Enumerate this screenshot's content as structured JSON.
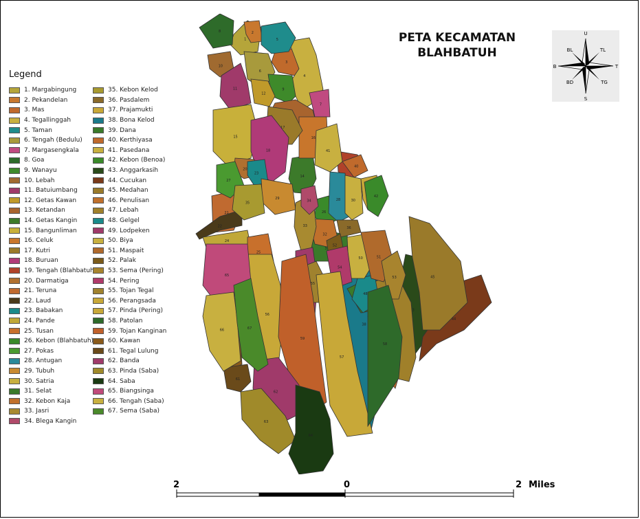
{
  "map": {
    "title_line1": "PETA KECAMATAN",
    "title_line2": "BLAHBATUH",
    "legend_title": "Legend",
    "legend": [
      {
        "label": "1. Margabingung",
        "color": "#b5a53a"
      },
      {
        "label": "2. Pekandelan",
        "color": "#c8782e"
      },
      {
        "label": "3. Mas",
        "color": "#c06a2c"
      },
      {
        "label": "4. Tegallinggah",
        "color": "#c8b040"
      },
      {
        "label": "5. Taman",
        "color": "#1f8c8c"
      },
      {
        "label": "6. Tengah (Bedulu)",
        "color": "#a89a3c"
      },
      {
        "label": "7. Margasengkala",
        "color": "#c04a80"
      },
      {
        "label": "8. Goa",
        "color": "#2e6b2a"
      },
      {
        "label": "9. Wanayu",
        "color": "#3e8a2a"
      },
      {
        "label": "10. Lebah",
        "color": "#a06a30"
      },
      {
        "label": "11. Batuiumbang",
        "color": "#a03a6a"
      },
      {
        "label": "12. Getas Kawan",
        "color": "#c09a2a"
      },
      {
        "label": "13. Ketandan",
        "color": "#a8642e"
      },
      {
        "label": "14. Getas Kangin",
        "color": "#3c7a2a"
      },
      {
        "label": "15. Bangunliman",
        "color": "#c8b03a"
      },
      {
        "label": "16. Celuk",
        "color": "#c8762c"
      },
      {
        "label": "17. Kutri",
        "color": "#9a7a2a"
      },
      {
        "label": "18. Buruan",
        "color": "#b03a78"
      },
      {
        "label": "19. Tengah (Blahbatuh)",
        "color": "#b0422a"
      },
      {
        "label": "20. Darmatiga",
        "color": "#b07030"
      },
      {
        "label": "21. Teruna",
        "color": "#c06a30"
      },
      {
        "label": "22. Laud",
        "color": "#4a3a1a"
      },
      {
        "label": "23. Babakan",
        "color": "#1a8a8a"
      },
      {
        "label": "24. Pande",
        "color": "#c0a838"
      },
      {
        "label": "25. Tusan",
        "color": "#c8702c"
      },
      {
        "label": "26. Kebon (Blahbatuh)",
        "color": "#3a8a2a"
      },
      {
        "label": "27. Pokas",
        "color": "#4a9a30"
      },
      {
        "label": "28. Antugan",
        "color": "#2a8a9a"
      },
      {
        "label": "29. Tubuh",
        "color": "#c88a30"
      },
      {
        "label": "30. Satria",
        "color": "#c8b040"
      },
      {
        "label": "31. Selat",
        "color": "#3a7a2a"
      },
      {
        "label": "32. Kebon Kaja",
        "color": "#c0702c"
      },
      {
        "label": "33. Jasri",
        "color": "#a88a30"
      },
      {
        "label": "34. Blega Kangin",
        "color": "#b04a6a"
      },
      {
        "label": "35. Kebon Kelod",
        "color": "#a89a30"
      },
      {
        "label": "36. Pasdalem",
        "color": "#8a6a2a"
      },
      {
        "label": "37. Prajamukti",
        "color": "#c8a838"
      },
      {
        "label": "38. Bona Kelod",
        "color": "#1a7a8a"
      },
      {
        "label": "39. Dana",
        "color": "#3a7a2a"
      },
      {
        "label": "40. Kerthiyasa",
        "color": "#c06a2c"
      },
      {
        "label": "41. Pasedana",
        "color": "#c8b040"
      },
      {
        "label": "42. Kebon (Benoa)",
        "color": "#3a8a2a"
      },
      {
        "label": "43. Anggarkasih",
        "color": "#2a4a1a"
      },
      {
        "label": "44. Cucukan",
        "color": "#7a3a1a"
      },
      {
        "label": "45. Medahan",
        "color": "#9a7a2a"
      },
      {
        "label": "46. Penulisan",
        "color": "#c0702c"
      },
      {
        "label": "47. Lebah",
        "color": "#a0802a"
      },
      {
        "label": "48. Gelgel",
        "color": "#1a8a8a"
      },
      {
        "label": "49. Lodpeken",
        "color": "#a03a6a"
      },
      {
        "label": "50. Biya",
        "color": "#c8b040"
      },
      {
        "label": "51. Maspait",
        "color": "#b06a2c"
      },
      {
        "label": "52. Palak",
        "color": "#7a5a1a"
      },
      {
        "label": "53. Sema (Pering)",
        "color": "#a8842e"
      },
      {
        "label": "54. Pering",
        "color": "#b03a6a"
      },
      {
        "label": "55. Tojan Tegal",
        "color": "#a0822e"
      },
      {
        "label": "56. Perangsada",
        "color": "#c8a838"
      },
      {
        "label": "57. Pinda (Pering)",
        "color": "#c8a838"
      },
      {
        "label": "58. Patolan",
        "color": "#2e6a2a"
      },
      {
        "label": "59. Tojan Kanginan",
        "color": "#c0602a"
      },
      {
        "label": "60. Kawan",
        "color": "#8a5a1a"
      },
      {
        "label": "61. Tegal Lulung",
        "color": "#6a4a1a"
      },
      {
        "label": "62. Banda",
        "color": "#a03a6a"
      },
      {
        "label": "63. Pinda (Saba)",
        "color": "#a08a2a"
      },
      {
        "label": "64. Saba",
        "color": "#1a3a12"
      },
      {
        "label": "65. Biangsinga",
        "color": "#c04a7a"
      },
      {
        "label": "66. Tengah (Saba)",
        "color": "#c8b040"
      },
      {
        "label": "67. Sema (Saba)",
        "color": "#4a8a2a"
      }
    ],
    "compass_labels": {
      "n": "U",
      "s": "S",
      "e": "T",
      "w": "B",
      "ne": "TL",
      "nw": "BL",
      "se": "TG",
      "sw": "BD"
    },
    "scale": {
      "left": "2",
      "mid": "0",
      "right": "2",
      "unit": "Miles"
    }
  }
}
